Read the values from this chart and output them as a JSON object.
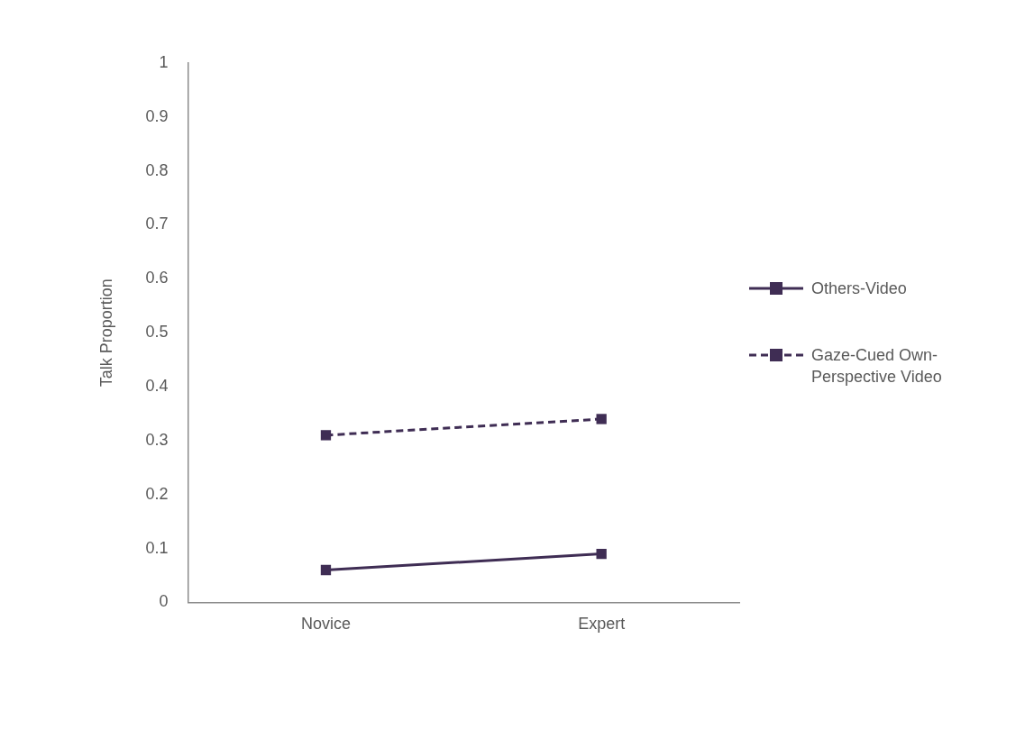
{
  "chart_data": {
    "type": "line",
    "ylabel": "Talk Proportion",
    "categories": [
      "Novice",
      "Expert"
    ],
    "series": [
      {
        "name": "Others-Video",
        "color": "#3f2d54",
        "values": [
          0.06,
          0.09
        ],
        "line_style": "solid"
      },
      {
        "name": "Gaze-Cued Own-Perspective Video",
        "color": "#3f2d54",
        "values": [
          0.31,
          0.34
        ],
        "line_style": "dashed"
      }
    ],
    "ylim": [
      0,
      1
    ],
    "yticks": [
      0,
      0.1,
      0.2,
      0.3,
      0.4,
      0.5,
      0.6,
      0.7,
      0.8,
      0.9,
      1
    ],
    "grid": false,
    "legend": "right",
    "marker": "square"
  }
}
